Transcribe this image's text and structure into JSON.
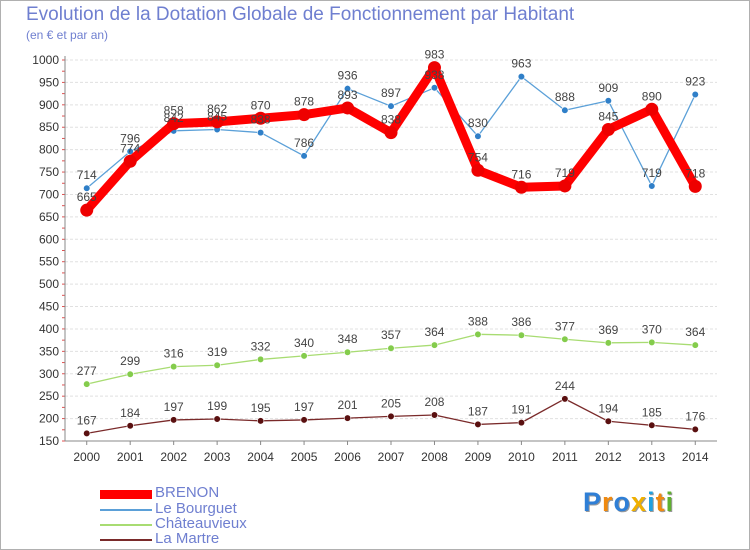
{
  "chart_data": {
    "type": "line",
    "title": "Evolution de la Dotation Globale de Fonctionnement par Habitant",
    "subtitle": "(en € et par an)",
    "xlabel": "",
    "ylabel": "",
    "x": [
      "2000",
      "2001",
      "2002",
      "2003",
      "2004",
      "2005",
      "2006",
      "2007",
      "2008",
      "2009",
      "2010",
      "2011",
      "2012",
      "2013",
      "2014"
    ],
    "ylim": [
      150,
      1000
    ],
    "yticks": [
      150,
      200,
      250,
      300,
      350,
      400,
      450,
      500,
      550,
      600,
      650,
      700,
      750,
      800,
      850,
      900,
      950,
      1000
    ],
    "legend_position": "bottom-left",
    "series": [
      {
        "name": "BRENON",
        "color": "#ff0000",
        "values": [
          665,
          774,
          858,
          862,
          870,
          878,
          893,
          838,
          983,
          754,
          716,
          719,
          845,
          890,
          718
        ],
        "labels": [
          "665",
          "774",
          "858",
          "862",
          "870",
          "878",
          "893",
          "838",
          "983",
          "754",
          "716",
          "719",
          "845",
          "890",
          "718"
        ]
      },
      {
        "name": "Le Bourguet",
        "color": "#5ba0d8",
        "values": [
          714,
          796,
          842,
          845,
          838,
          786,
          936,
          897,
          938,
          830,
          963,
          888,
          909,
          719,
          923
        ],
        "labels": [
          "714",
          "796",
          "842",
          "845",
          "838",
          "786",
          "936",
          "897",
          "938",
          "830",
          "963",
          "888",
          "909",
          "719",
          "923"
        ]
      },
      {
        "name": "Châteauvieux",
        "color": "#a8dc72",
        "values": [
          277,
          299,
          316,
          319,
          332,
          340,
          348,
          357,
          364,
          388,
          386,
          377,
          369,
          370,
          364
        ],
        "labels": [
          "277",
          "299",
          "316",
          "319",
          "332",
          "340",
          "348",
          "357",
          "364",
          "388",
          "386",
          "377",
          "369",
          "370",
          "364"
        ]
      },
      {
        "name": "La Martre",
        "color": "#7a2a2a",
        "values": [
          167,
          184,
          197,
          199,
          195,
          197,
          201,
          205,
          208,
          187,
          191,
          244,
          194,
          185,
          176
        ],
        "labels": [
          "167",
          "184",
          "197",
          "199",
          "195",
          "197",
          "201",
          "205",
          "208",
          "187",
          "191",
          "244",
          "194",
          "185",
          "176"
        ]
      }
    ]
  },
  "logo": {
    "letters": [
      "P",
      "r",
      "o",
      "x",
      "i",
      "t",
      "i"
    ],
    "colors": [
      "#2f7fd6",
      "#f08a10",
      "#2f7fd6",
      "#f0b000",
      "#20a0e0",
      "#f08a10",
      "#60b030"
    ]
  }
}
